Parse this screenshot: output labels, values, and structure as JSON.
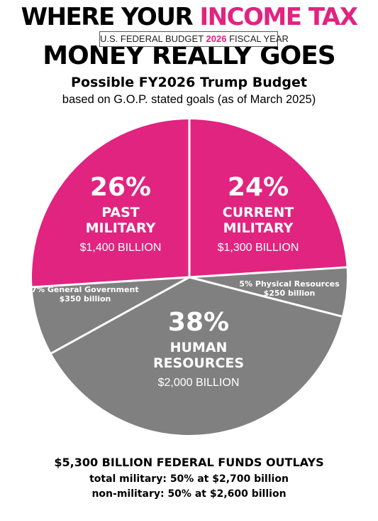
{
  "headline": {
    "line1_prefix": "WHERE YOUR ",
    "line1_accent": "INCOME TAX",
    "line2": "MONEY REALLY GOES"
  },
  "badge": {
    "prefix": "U.S. FEDERAL BUDGET ",
    "year": "2026",
    "suffix": " FISCAL YEAR"
  },
  "subtitle": "Possible FY2026 Trump Budget",
  "subtitle2": "based on G.O.P. stated goals (as of March 2025)",
  "colors": {
    "accent": "#e0247f",
    "gray": "#808080",
    "pink": "#e0247f",
    "divider": "#ffffff"
  },
  "chart_data": {
    "type": "pie",
    "title": "Possible FY2026 Trump Budget",
    "slices": [
      {
        "pct_label": "24%",
        "label_lines": [
          "CURRENT",
          "MILITARY"
        ],
        "value_label": "$1,300 BILLION",
        "percent": 24,
        "value": 1300,
        "color": "#e0247f"
      },
      {
        "pct_label": "",
        "label_lines": [
          "5% Physical  Resources"
        ],
        "value_label": "$250 billion",
        "percent": 5,
        "value": 250,
        "color": "#808080"
      },
      {
        "pct_label": "38%",
        "label_lines": [
          "HUMAN",
          "RESOURCES"
        ],
        "value_label": "$2,000 BILLION",
        "percent": 38,
        "value": 2000,
        "color": "#808080"
      },
      {
        "pct_label": "",
        "label_lines": [
          "7% General Government"
        ],
        "value_label": "$350 billion",
        "percent": 7,
        "value": 350,
        "color": "#808080"
      },
      {
        "pct_label": "26%",
        "label_lines": [
          "PAST",
          "MILITARY"
        ],
        "value_label": "$1,400 BILLION",
        "percent": 26,
        "value": 1400,
        "color": "#e0247f"
      }
    ]
  },
  "footer": {
    "total": "$5,300 BILLION FEDERAL FUNDS OUTLAYS",
    "military": "total military: 50% at $2,700 billion",
    "nonmilitary": "non-military: 50% at $2,600 billion"
  }
}
